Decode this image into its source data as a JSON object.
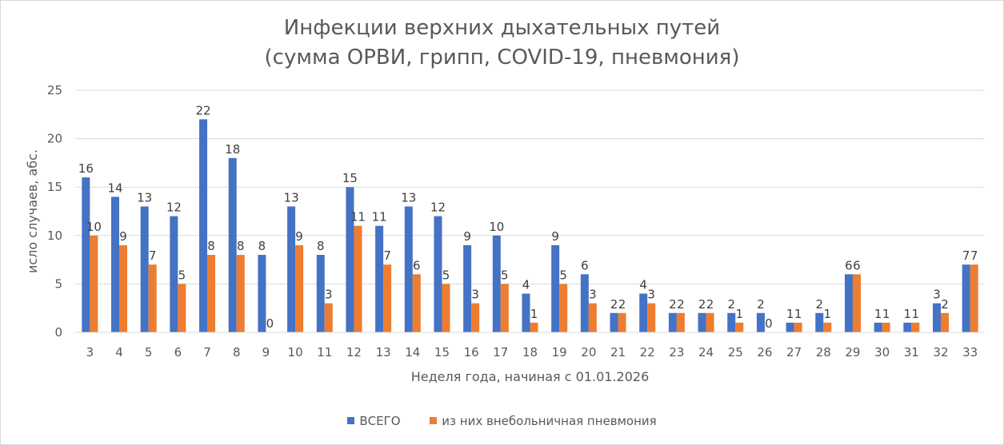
{
  "chart_data": {
    "type": "bar",
    "title_line1": "Инфекции верхних дыхательных путей",
    "title_line2": "(сумма ОРВИ, грипп, COVID-19, пневмония)",
    "xlabel": "Неделя года, начиная с 01.01.2026",
    "ylabel": "исло случаев, абс.",
    "ylim": [
      0,
      25
    ],
    "yticks": [
      "0",
      "5",
      "10",
      "15",
      "20",
      "25"
    ],
    "grid": true,
    "legend_position": "bottom",
    "categories": [
      "3",
      "4",
      "5",
      "6",
      "7",
      "8",
      "9",
      "10",
      "11",
      "12",
      "13",
      "14",
      "15",
      "16",
      "17",
      "18",
      "19",
      "20",
      "21",
      "22",
      "23",
      "24",
      "25",
      "26",
      "27",
      "28",
      "29",
      "30",
      "31",
      "32",
      "33"
    ],
    "series": [
      {
        "name": "ВСЕГО",
        "color": "#4472c4",
        "values": [
          16,
          14,
          13,
          12,
          22,
          18,
          8,
          13,
          8,
          15,
          11,
          13,
          12,
          9,
          10,
          4,
          9,
          6,
          2,
          4,
          2,
          2,
          2,
          2,
          1,
          2,
          6,
          1,
          1,
          3,
          7
        ]
      },
      {
        "name": "из них внебольничная пневмония",
        "color": "#ed7d31",
        "values": [
          10,
          9,
          7,
          5,
          8,
          8,
          0,
          9,
          3,
          11,
          7,
          6,
          5,
          3,
          5,
          1,
          5,
          3,
          2,
          3,
          2,
          2,
          1,
          0,
          1,
          1,
          6,
          1,
          1,
          2,
          7
        ]
      }
    ]
  }
}
